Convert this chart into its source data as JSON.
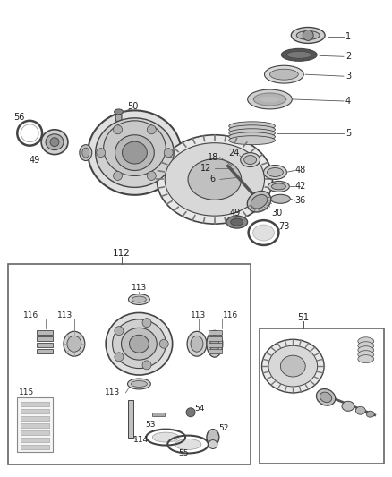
{
  "bg_color": "#ffffff",
  "line_color": "#444444",
  "text_color": "#222222",
  "figsize": [
    4.38,
    5.33
  ],
  "dpi": 100
}
